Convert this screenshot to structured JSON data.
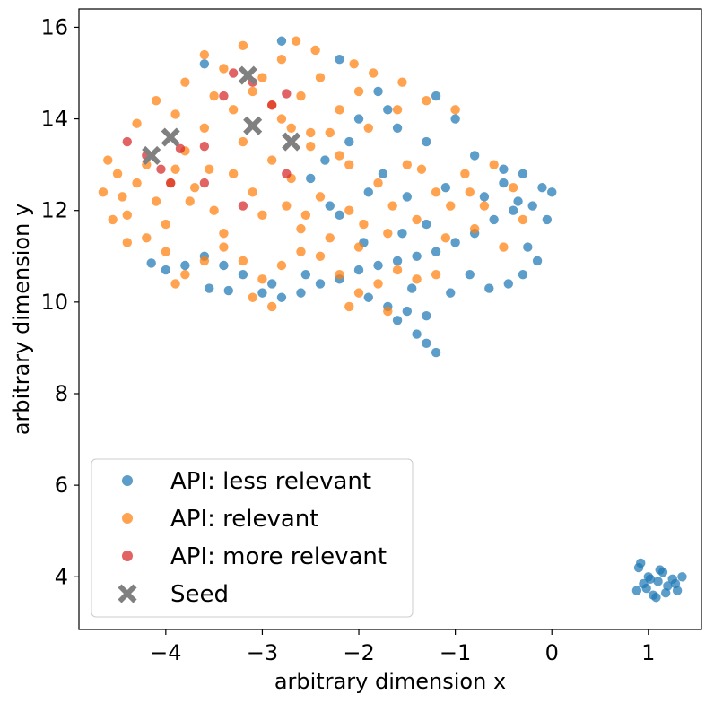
{
  "chart_data": {
    "type": "scatter",
    "xlabel": "arbitrary dimension x",
    "ylabel": "arbitrary dimension y",
    "xlim": [
      -4.9,
      1.55
    ],
    "ylim": [
      2.85,
      16.4
    ],
    "xticks": [
      -4,
      -3,
      -2,
      -1,
      0,
      1
    ],
    "yticks": [
      4,
      6,
      8,
      10,
      12,
      14,
      16
    ],
    "grid": false,
    "legend_position": "lower-left",
    "series": [
      {
        "name": "API: less relevant",
        "marker": "circle",
        "color": "#1f77b4",
        "points": [
          [
            -3.6,
            15.2
          ],
          [
            -2.8,
            15.7
          ],
          [
            -2.2,
            15.3
          ],
          [
            -1.8,
            14.6
          ],
          [
            -1.2,
            14.5
          ],
          [
            -1,
            14
          ],
          [
            -1.7,
            14.2
          ],
          [
            -1.6,
            13.8
          ],
          [
            -2,
            14
          ],
          [
            -1.3,
            13.5
          ],
          [
            -0.8,
            13.2
          ],
          [
            -0.5,
            12.9
          ],
          [
            -0.3,
            12.8
          ],
          [
            -0.1,
            12.5
          ],
          [
            0,
            12.4
          ],
          [
            -0.2,
            12.1
          ],
          [
            -0.4,
            12
          ],
          [
            -0.6,
            11.8
          ],
          [
            -0.8,
            11.5
          ],
          [
            -1,
            11.3
          ],
          [
            -1.2,
            11.1
          ],
          [
            -1.4,
            11
          ],
          [
            -1.6,
            10.9
          ],
          [
            -1.8,
            10.8
          ],
          [
            -2,
            10.7
          ],
          [
            -2.2,
            10.5
          ],
          [
            -2.4,
            10.4
          ],
          [
            -2.6,
            10.2
          ],
          [
            -2.8,
            10.1
          ],
          [
            -3,
            10.2
          ],
          [
            -3.2,
            10.6
          ],
          [
            -3.4,
            10.8
          ],
          [
            -3.6,
            11
          ],
          [
            -3.8,
            10.8
          ],
          [
            -4,
            10.7
          ],
          [
            -4.15,
            10.85
          ],
          [
            -3.55,
            10.3
          ],
          [
            -3.35,
            10.25
          ],
          [
            -2.9,
            10.4
          ],
          [
            -2.55,
            10.6
          ],
          [
            -1.9,
            10.1
          ],
          [
            -1.7,
            9.9
          ],
          [
            -1.5,
            9.8
          ],
          [
            -1.3,
            9.7
          ],
          [
            -1.4,
            9.3
          ],
          [
            -1.2,
            8.9
          ],
          [
            -1.3,
            9.1
          ],
          [
            -1.6,
            9.6
          ],
          [
            -1.45,
            10.3
          ],
          [
            -1.05,
            10.2
          ],
          [
            -0.85,
            10.6
          ],
          [
            -0.65,
            10.3
          ],
          [
            -0.45,
            10.4
          ],
          [
            -0.3,
            10.6
          ],
          [
            -0.15,
            10.9
          ],
          [
            -0.25,
            11.2
          ],
          [
            -0.05,
            11.8
          ],
          [
            -0.5,
            12.6
          ],
          [
            -0.35,
            12.2
          ],
          [
            -0.7,
            12.3
          ],
          [
            -1.1,
            12.5
          ],
          [
            -1.5,
            12.3
          ],
          [
            -1.9,
            12.4
          ],
          [
            -2.3,
            12.1
          ],
          [
            -2.5,
            12.7
          ],
          [
            -2.2,
            11.9
          ],
          [
            -1.95,
            11.3
          ],
          [
            -1.55,
            11.5
          ],
          [
            -1.3,
            11.7
          ],
          [
            -1.75,
            12.8
          ],
          [
            -2.1,
            13.5
          ],
          [
            -2.35,
            13.1
          ],
          [
            0.9,
            4.2
          ],
          [
            1,
            4
          ],
          [
            1.1,
            3.9
          ],
          [
            1.2,
            3.8
          ],
          [
            1.3,
            3.7
          ],
          [
            1.05,
            3.6
          ],
          [
            0.95,
            3.85
          ],
          [
            1.15,
            4.1
          ],
          [
            1.25,
            3.95
          ],
          [
            1.35,
            4
          ],
          [
            0.98,
            3.75
          ],
          [
            1.08,
            3.55
          ],
          [
            1.18,
            3.65
          ],
          [
            1.28,
            3.85
          ],
          [
            1.02,
            3.95
          ],
          [
            1.12,
            4.15
          ],
          [
            0.92,
            4.3
          ],
          [
            0.88,
            3.7
          ]
        ]
      },
      {
        "name": "API: relevant",
        "marker": "circle",
        "color": "#ff7f0e",
        "points": [
          [
            -4.6,
            13.1
          ],
          [
            -4.5,
            12.8
          ],
          [
            -4.45,
            12.3
          ],
          [
            -4.4,
            11.9
          ],
          [
            -4.3,
            12.6
          ],
          [
            -4.2,
            13
          ],
          [
            -4.1,
            12.2
          ],
          [
            -4,
            11.7
          ],
          [
            -3.9,
            12.9
          ],
          [
            -3.8,
            13.3
          ],
          [
            -3.7,
            12.5
          ],
          [
            -3.6,
            13.8
          ],
          [
            -3.5,
            12
          ],
          [
            -3.4,
            11.5
          ],
          [
            -3.3,
            12.8
          ],
          [
            -3.2,
            13.5
          ],
          [
            -3.1,
            12.4
          ],
          [
            -3,
            11.9
          ],
          [
            -2.9,
            13.1
          ],
          [
            -2.8,
            14
          ],
          [
            -2.7,
            12.7
          ],
          [
            -2.6,
            11.6
          ],
          [
            -2.5,
            13.7
          ],
          [
            -2.4,
            12.3
          ],
          [
            -2.3,
            11.4
          ],
          [
            -2.2,
            13.2
          ],
          [
            -2.1,
            12
          ],
          [
            -2,
            11.2
          ],
          [
            -1.9,
            13.8
          ],
          [
            -1.8,
            12.6
          ],
          [
            -1.7,
            11.5
          ],
          [
            -1.6,
            14.2
          ],
          [
            -1.5,
            13
          ],
          [
            -1.4,
            11.8
          ],
          [
            -1.3,
            14.4
          ],
          [
            -1.2,
            12.4
          ],
          [
            -1.1,
            11.4
          ],
          [
            -1,
            14.2
          ],
          [
            -0.9,
            12.8
          ],
          [
            -0.8,
            11.6
          ],
          [
            -0.7,
            12.1
          ],
          [
            -0.6,
            13
          ],
          [
            -0.5,
            11.2
          ],
          [
            -0.4,
            12.5
          ],
          [
            -0.3,
            11.8
          ],
          [
            -3.8,
            14.8
          ],
          [
            -3.6,
            15.4
          ],
          [
            -3.4,
            15.1
          ],
          [
            -3.2,
            15.6
          ],
          [
            -3,
            14.9
          ],
          [
            -2.8,
            15.3
          ],
          [
            -2.6,
            14.5
          ],
          [
            -2.4,
            14.9
          ],
          [
            -2.2,
            14.2
          ],
          [
            -2,
            14.6
          ],
          [
            -3.9,
            14.1
          ],
          [
            -4.1,
            14.4
          ],
          [
            -4.3,
            13.9
          ],
          [
            -3.5,
            14.5
          ],
          [
            -3.3,
            14.2
          ],
          [
            -3.1,
            14.6
          ],
          [
            -2.9,
            14.3
          ],
          [
            -2.7,
            13.8
          ],
          [
            -2.5,
            13.4
          ],
          [
            -2.3,
            13.7
          ],
          [
            -2.1,
            13
          ],
          [
            -4.2,
            11.4
          ],
          [
            -4,
            11.1
          ],
          [
            -3.8,
            10.6
          ],
          [
            -3.6,
            10.9
          ],
          [
            -3.4,
            11.2
          ],
          [
            -3.2,
            10.9
          ],
          [
            -3,
            10.5
          ],
          [
            -2.8,
            10.8
          ],
          [
            -2.6,
            11.1
          ],
          [
            -2.4,
            11
          ],
          [
            -2.2,
            10.6
          ],
          [
            -2,
            10.2
          ],
          [
            -1.8,
            10.4
          ],
          [
            -1.6,
            10.7
          ],
          [
            -1.4,
            10.5
          ],
          [
            -1.2,
            10.6
          ],
          [
            -1.7,
            9.8
          ],
          [
            -2.1,
            9.9
          ],
          [
            -2.9,
            9.9
          ],
          [
            -3.1,
            10.1
          ],
          [
            -3.9,
            10.4
          ],
          [
            -4.4,
            11.3
          ],
          [
            -4.65,
            12.4
          ],
          [
            -4.55,
            11.8
          ],
          [
            -1.55,
            14.8
          ],
          [
            -1.85,
            15
          ],
          [
            -2.05,
            15.2
          ],
          [
            -2.45,
            15.5
          ],
          [
            -2.65,
            15.7
          ],
          [
            -3.55,
            12.9
          ],
          [
            -3.75,
            12.2
          ],
          [
            -3.95,
            12.6
          ],
          [
            -2.75,
            12.1
          ],
          [
            -2.55,
            11.9
          ],
          [
            -1.95,
            11.7
          ],
          [
            -1.65,
            12.1
          ],
          [
            -1.35,
            12.9
          ],
          [
            -1.05,
            12.1
          ],
          [
            -0.85,
            12.4
          ]
        ]
      },
      {
        "name": "API: more relevant",
        "marker": "circle",
        "color": "#d62728",
        "points": [
          [
            -4.4,
            13.5
          ],
          [
            -4.2,
            13.2
          ],
          [
            -4.05,
            12.9
          ],
          [
            -3.95,
            12.6
          ],
          [
            -3.85,
            13.35
          ],
          [
            -3.6,
            12.6
          ],
          [
            -3.4,
            14.5
          ],
          [
            -3.3,
            15
          ],
          [
            -3.1,
            14.8
          ],
          [
            -2.9,
            14.3
          ],
          [
            -2.75,
            14.55
          ],
          [
            -2.75,
            12.8
          ],
          [
            -3.6,
            13.4
          ],
          [
            -3.2,
            12.1
          ]
        ]
      },
      {
        "name": "Seed",
        "marker": "x",
        "color": "#808080",
        "points": [
          [
            -3.15,
            14.95
          ],
          [
            -3.95,
            13.6
          ],
          [
            -4.15,
            13.2
          ],
          [
            -3.1,
            13.85
          ],
          [
            -2.7,
            13.5
          ]
        ]
      }
    ]
  }
}
